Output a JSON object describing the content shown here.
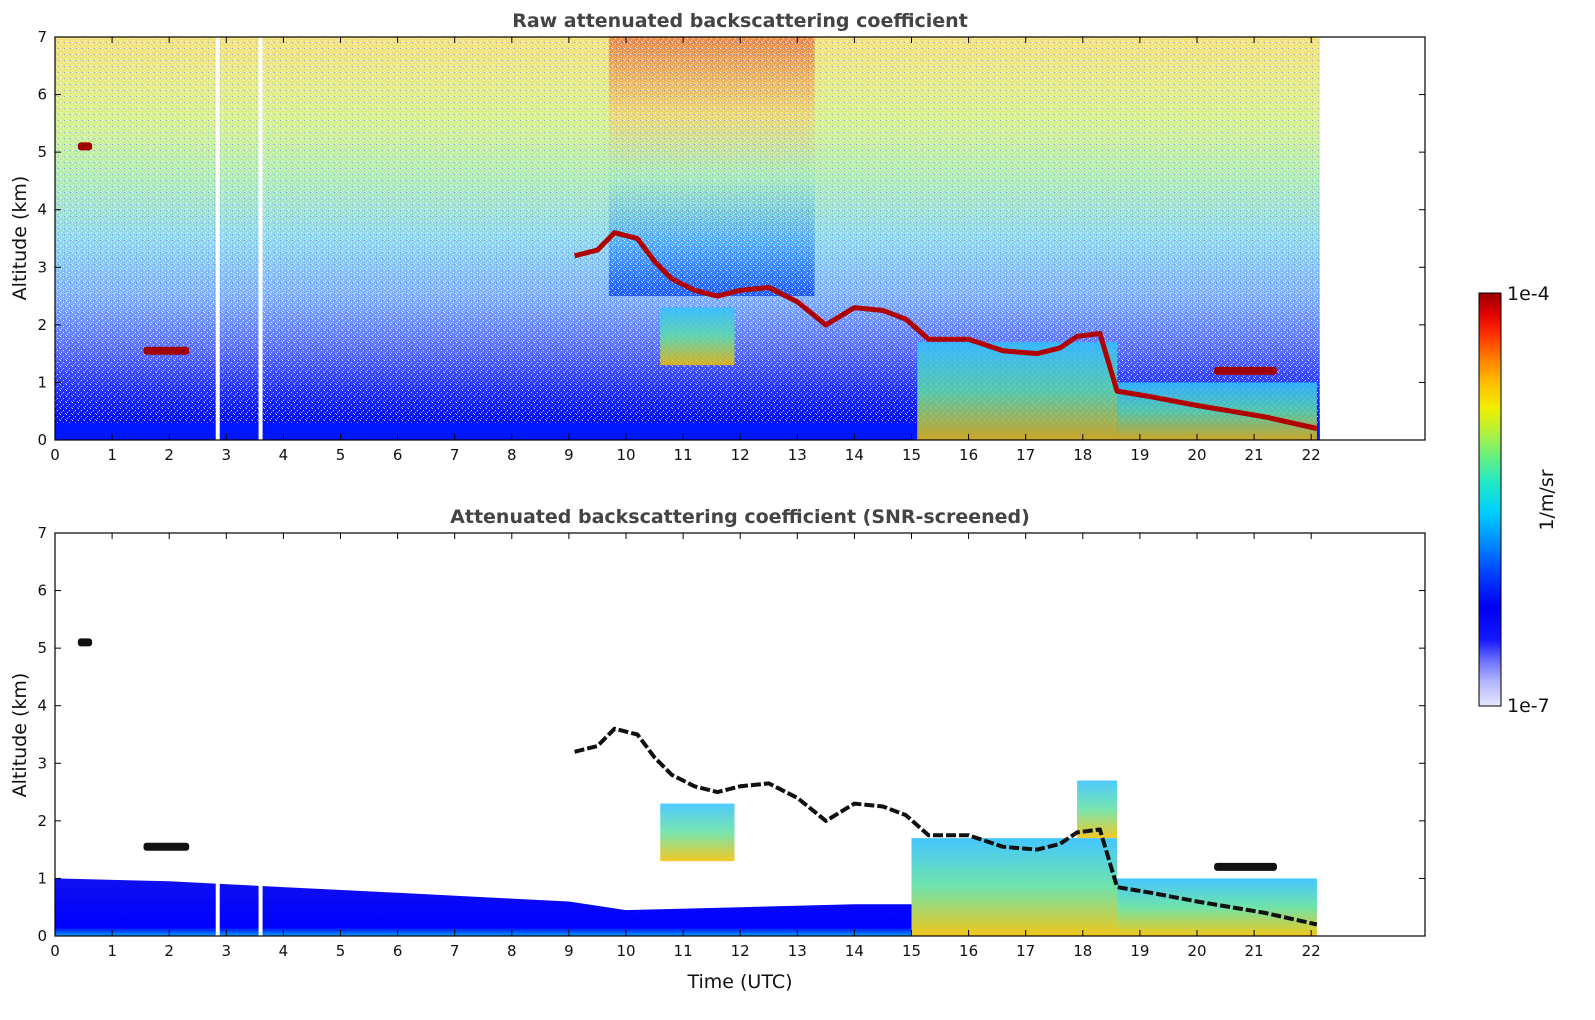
{
  "chart_data": [
    {
      "type": "heatmap",
      "title": "Raw attenuated backscattering coefficient",
      "xlabel": "",
      "ylabel": "Altitude (km)",
      "xlim": [
        0,
        24
      ],
      "ylim": [
        0,
        7
      ],
      "x_ticks": [
        "0",
        "1",
        "2",
        "3",
        "4",
        "5",
        "6",
        "7",
        "8",
        "9",
        "10",
        "11",
        "12",
        "13",
        "14",
        "15",
        "16",
        "17",
        "18",
        "19",
        "20",
        "21",
        "22"
      ],
      "y_ticks": [
        "0",
        "1",
        "2",
        "3",
        "4",
        "5",
        "6",
        "7"
      ],
      "data_end_hour": 22.15,
      "gaps_hours": [
        2.85,
        3.6
      ],
      "features": [
        {
          "kind": "cloud_layer",
          "x": [
            0.4,
            0.65
          ],
          "y": 5.1
        },
        {
          "kind": "cloud_layer",
          "x": [
            1.55,
            2.35
          ],
          "y": 1.55
        },
        {
          "kind": "cloud_track",
          "points": [
            [
              9.1,
              3.2
            ],
            [
              9.5,
              3.3
            ],
            [
              9.8,
              3.6
            ],
            [
              10.2,
              3.5
            ],
            [
              10.5,
              3.1
            ],
            [
              10.8,
              2.8
            ],
            [
              11.2,
              2.6
            ],
            [
              11.6,
              2.5
            ],
            [
              12.0,
              2.6
            ],
            [
              12.5,
              2.65
            ],
            [
              12.8,
              2.5
            ],
            [
              13.0,
              2.4
            ],
            [
              13.5,
              2.0
            ],
            [
              14.0,
              2.3
            ],
            [
              14.5,
              2.25
            ],
            [
              14.9,
              2.1
            ],
            [
              15.3,
              1.75
            ],
            [
              16.0,
              1.75
            ],
            [
              16.6,
              1.55
            ],
            [
              17.2,
              1.5
            ],
            [
              17.6,
              1.6
            ],
            [
              17.9,
              1.8
            ],
            [
              18.3,
              1.85
            ],
            [
              18.6,
              0.85
            ],
            [
              19.2,
              0.75
            ],
            [
              20.0,
              0.6
            ],
            [
              20.6,
              0.5
            ],
            [
              21.2,
              0.4
            ],
            [
              22.1,
              0.2
            ]
          ]
        },
        {
          "kind": "cloud_layer",
          "x": [
            20.3,
            21.4
          ],
          "y": 1.2
        },
        {
          "kind": "aerosol_region",
          "x": [
            10.6,
            11.9
          ],
          "y": [
            1.3,
            2.3
          ]
        },
        {
          "kind": "aerosol_region",
          "x": [
            15.1,
            18.6
          ],
          "y": [
            0.0,
            1.7
          ]
        },
        {
          "kind": "aerosol_region",
          "x": [
            18.6,
            22.1
          ],
          "y": [
            0.0,
            1.0
          ]
        }
      ]
    },
    {
      "type": "heatmap",
      "title": "Attenuated backscattering coefficient (SNR-screened)",
      "xlabel": "Time (UTC)",
      "ylabel": "Altitude (km)",
      "xlim": [
        0,
        24
      ],
      "ylim": [
        0,
        7
      ],
      "x_ticks": [
        "0",
        "1",
        "2",
        "3",
        "4",
        "5",
        "6",
        "7",
        "8",
        "9",
        "10",
        "11",
        "12",
        "13",
        "14",
        "15",
        "16",
        "17",
        "18",
        "19",
        "20",
        "21",
        "22"
      ],
      "y_ticks": [
        "0",
        "1",
        "2",
        "3",
        "4",
        "5",
        "6",
        "7"
      ],
      "data_end_hour": 22.15,
      "gaps_hours": [
        2.85,
        3.6
      ],
      "boundary_layer_top_km": [
        [
          0,
          1.0
        ],
        [
          2,
          0.95
        ],
        [
          4,
          0.85
        ],
        [
          6,
          0.75
        ],
        [
          8,
          0.65
        ],
        [
          9,
          0.6
        ],
        [
          10,
          0.45
        ],
        [
          12,
          0.5
        ],
        [
          14,
          0.55
        ],
        [
          15,
          0.55
        ]
      ]
    }
  ],
  "colorbar": {
    "label": "1/m/sr",
    "max_label": "1e-4",
    "min_label": "1e-7",
    "colors": [
      "#e8e8ff",
      "#b0b4ff",
      "#6a70ff",
      "#1418ff",
      "#0000f0",
      "#0040ff",
      "#0090ff",
      "#00d0ff",
      "#20e8c8",
      "#60f080",
      "#b0f040",
      "#f0f000",
      "#ffc000",
      "#ff8000",
      "#ff3000",
      "#e00000",
      "#9a0000"
    ]
  }
}
